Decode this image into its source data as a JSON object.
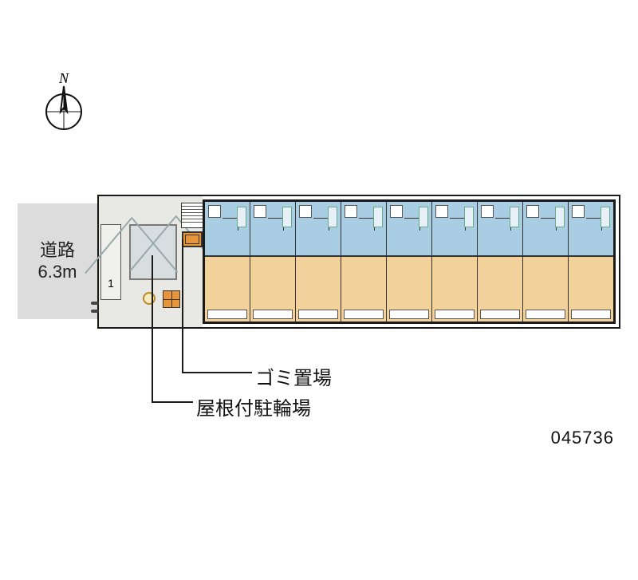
{
  "compass": {
    "letter": "N"
  },
  "road": {
    "label_line1": "道路",
    "label_line2": "6.3m"
  },
  "parking": {
    "slot_number": "1"
  },
  "callouts": {
    "trash": "ゴミ置場",
    "bike_shed": "屋根付駐輪場"
  },
  "reference_number": "045736",
  "layout": {
    "unit_count": 9,
    "colors": {
      "room_fill": "#f2d19a",
      "wet_fill": "#a9cde3",
      "road_fill": "#dcdcdc",
      "entrance_fill": "#e8e8e4",
      "accent_orange": "#e8953a",
      "outline": "#1a1a1a"
    }
  }
}
